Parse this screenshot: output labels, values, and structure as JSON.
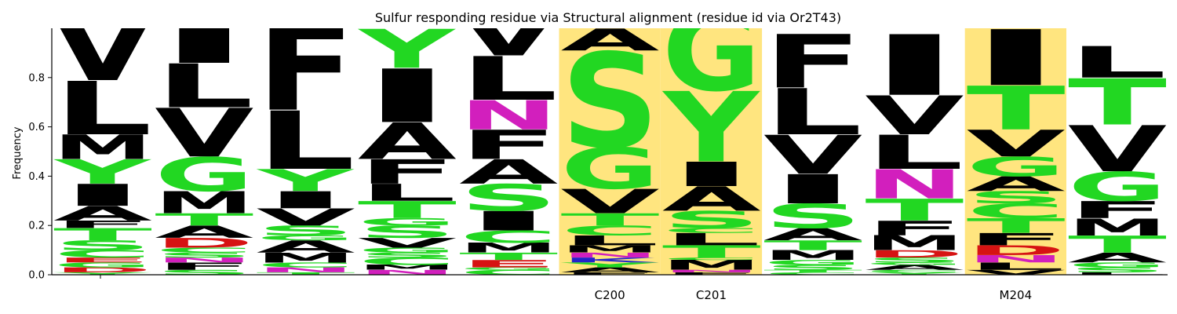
{
  "chart_data": {
    "type": "sequence-logo",
    "title": "Sulfur responding residue via Structural alignment (residue id via Or2T43)",
    "ylabel": "Frequency",
    "xlabel": "",
    "ylim": [
      0,
      1.0
    ],
    "y_ticks": [
      "0.0",
      "0.2",
      "0.4",
      "0.6",
      "0.8"
    ],
    "y_tick_values": [
      0,
      0.2,
      0.4,
      0.6,
      0.8
    ],
    "grid": false,
    "colors": {
      "hydrophobic": "#000000",
      "polar": "#22d722",
      "amide": "#d21fbd",
      "acidic": "#d61313",
      "basic": "#2222cc",
      "highlight": "#ffe57f"
    },
    "positions": [
      {
        "label": "",
        "highlight": false,
        "stack": [
          {
            "letter": "Y",
            "freq": 0.01
          },
          {
            "letter": "D",
            "freq": 0.02
          },
          {
            "letter": "G",
            "freq": 0.02
          },
          {
            "letter": "E",
            "freq": 0.02
          },
          {
            "letter": "C",
            "freq": 0.03
          },
          {
            "letter": "S",
            "freq": 0.04
          },
          {
            "letter": "T",
            "freq": 0.05
          },
          {
            "letter": "F",
            "freq": 0.03
          },
          {
            "letter": "A",
            "freq": 0.06
          },
          {
            "letter": "I",
            "freq": 0.09
          },
          {
            "letter": "Y",
            "freq": 0.1
          },
          {
            "letter": "M",
            "freq": 0.1
          },
          {
            "letter": "L",
            "freq": 0.22
          },
          {
            "letter": "V",
            "freq": 0.26
          }
        ]
      },
      {
        "label": "",
        "highlight": false,
        "stack": [
          {
            "letter": "S",
            "freq": 0.02
          },
          {
            "letter": "F",
            "freq": 0.03
          },
          {
            "letter": "N",
            "freq": 0.02
          },
          {
            "letter": "S",
            "freq": 0.02
          },
          {
            "letter": "C",
            "freq": 0.02
          },
          {
            "letter": "D",
            "freq": 0.04
          },
          {
            "letter": "A",
            "freq": 0.05
          },
          {
            "letter": "T",
            "freq": 0.05
          },
          {
            "letter": "M",
            "freq": 0.09
          },
          {
            "letter": "G",
            "freq": 0.14
          },
          {
            "letter": "V",
            "freq": 0.2
          },
          {
            "letter": "L",
            "freq": 0.18
          },
          {
            "letter": "I",
            "freq": 0.19
          }
        ]
      },
      {
        "label": "",
        "highlight": false,
        "stack": [
          {
            "letter": "T",
            "freq": 0.01
          },
          {
            "letter": "N",
            "freq": 0.02
          },
          {
            "letter": "C",
            "freq": 0.02
          },
          {
            "letter": "M",
            "freq": 0.04
          },
          {
            "letter": "A",
            "freq": 0.05
          },
          {
            "letter": "G",
            "freq": 0.02
          },
          {
            "letter": "S",
            "freq": 0.04
          },
          {
            "letter": "V",
            "freq": 0.07
          },
          {
            "letter": "I",
            "freq": 0.07
          },
          {
            "letter": "Y",
            "freq": 0.09
          },
          {
            "letter": "L",
            "freq": 0.24
          },
          {
            "letter": "F",
            "freq": 0.36
          }
        ]
      },
      {
        "label": "",
        "highlight": false,
        "stack": [
          {
            "letter": "N",
            "freq": 0.02
          },
          {
            "letter": "M",
            "freq": 0.02
          },
          {
            "letter": "C",
            "freq": 0.03
          },
          {
            "letter": "S",
            "freq": 0.02
          },
          {
            "letter": "G",
            "freq": 0.02
          },
          {
            "letter": "V",
            "freq": 0.04
          },
          {
            "letter": "S",
            "freq": 0.05
          },
          {
            "letter": "G",
            "freq": 0.03
          },
          {
            "letter": "T",
            "freq": 0.07
          },
          {
            "letter": "L",
            "freq": 0.07
          },
          {
            "letter": "F",
            "freq": 0.1
          },
          {
            "letter": "A",
            "freq": 0.15
          },
          {
            "letter": "I",
            "freq": 0.22
          },
          {
            "letter": "Y",
            "freq": 0.16
          }
        ]
      },
      {
        "label": "",
        "highlight": false,
        "stack": [
          {
            "letter": "C",
            "freq": 0.02
          },
          {
            "letter": "G",
            "freq": 0.01
          },
          {
            "letter": "E",
            "freq": 0.03
          },
          {
            "letter": "T",
            "freq": 0.03
          },
          {
            "letter": "M",
            "freq": 0.04
          },
          {
            "letter": "C",
            "freq": 0.05
          },
          {
            "letter": "I",
            "freq": 0.08
          },
          {
            "letter": "S",
            "freq": 0.11
          },
          {
            "letter": "A",
            "freq": 0.1
          },
          {
            "letter": "F",
            "freq": 0.12
          },
          {
            "letter": "N",
            "freq": 0.12
          },
          {
            "letter": "L",
            "freq": 0.18
          },
          {
            "letter": "V",
            "freq": 0.18
          }
        ]
      },
      {
        "label": "C200",
        "highlight": true,
        "stack": [
          {
            "letter": "F",
            "freq": 0.01
          },
          {
            "letter": "A",
            "freq": 0.02
          },
          {
            "letter": "Y",
            "freq": 0.02
          },
          {
            "letter": "K",
            "freq": 0.02
          },
          {
            "letter": "N",
            "freq": 0.02
          },
          {
            "letter": "M",
            "freq": 0.03
          },
          {
            "letter": "L",
            "freq": 0.04
          },
          {
            "letter": "C",
            "freq": 0.04
          },
          {
            "letter": "T",
            "freq": 0.05
          },
          {
            "letter": "V",
            "freq": 0.1
          },
          {
            "letter": "G",
            "freq": 0.17
          },
          {
            "letter": "S",
            "freq": 0.39
          },
          {
            "letter": "A",
            "freq": 0.09
          }
        ]
      },
      {
        "label": "C201",
        "highlight": true,
        "stack": [
          {
            "letter": "F",
            "freq": 0.01
          },
          {
            "letter": "N",
            "freq": 0.01
          },
          {
            "letter": "M",
            "freq": 0.04
          },
          {
            "letter": "C",
            "freq": 0.01
          },
          {
            "letter": "T",
            "freq": 0.05
          },
          {
            "letter": "L",
            "freq": 0.05
          },
          {
            "letter": "C",
            "freq": 0.02
          },
          {
            "letter": "S",
            "freq": 0.07
          },
          {
            "letter": "A",
            "freq": 0.1
          },
          {
            "letter": "I",
            "freq": 0.1
          },
          {
            "letter": "Y",
            "freq": 0.29
          },
          {
            "letter": "G",
            "freq": 0.33
          }
        ]
      },
      {
        "label": "",
        "highlight": false,
        "stack": [
          {
            "letter": "C",
            "freq": 0.01
          },
          {
            "letter": "T",
            "freq": 0.01
          },
          {
            "letter": "S",
            "freq": 0.02
          },
          {
            "letter": "G",
            "freq": 0.02
          },
          {
            "letter": "M",
            "freq": 0.04
          },
          {
            "letter": "T",
            "freq": 0.04
          },
          {
            "letter": "A",
            "freq": 0.05
          },
          {
            "letter": "S",
            "freq": 0.1
          },
          {
            "letter": "I",
            "freq": 0.12
          },
          {
            "letter": "V",
            "freq": 0.16
          },
          {
            "letter": "L",
            "freq": 0.19
          },
          {
            "letter": "F",
            "freq": 0.22
          }
        ]
      },
      {
        "label": "",
        "highlight": false,
        "stack": [
          {
            "letter": "Y",
            "freq": 0.01
          },
          {
            "letter": "C",
            "freq": 0.01
          },
          {
            "letter": "A",
            "freq": 0.02
          },
          {
            "letter": "G",
            "freq": 0.01
          },
          {
            "letter": "S",
            "freq": 0.02
          },
          {
            "letter": "D",
            "freq": 0.03
          },
          {
            "letter": "M",
            "freq": 0.06
          },
          {
            "letter": "F",
            "freq": 0.06
          },
          {
            "letter": "T",
            "freq": 0.09
          },
          {
            "letter": "N",
            "freq": 0.12
          },
          {
            "letter": "L",
            "freq": 0.14
          },
          {
            "letter": "V",
            "freq": 0.16
          },
          {
            "letter": "I",
            "freq": 0.25
          }
        ]
      },
      {
        "label": "M204",
        "highlight": true,
        "stack": [
          {
            "letter": "V",
            "freq": 0.02
          },
          {
            "letter": "L",
            "freq": 0.03
          },
          {
            "letter": "N",
            "freq": 0.03
          },
          {
            "letter": "D",
            "freq": 0.04
          },
          {
            "letter": "F",
            "freq": 0.05
          },
          {
            "letter": "T",
            "freq": 0.06
          },
          {
            "letter": "C",
            "freq": 0.06
          },
          {
            "letter": "S",
            "freq": 0.05
          },
          {
            "letter": "A",
            "freq": 0.06
          },
          {
            "letter": "G",
            "freq": 0.08
          },
          {
            "letter": "V",
            "freq": 0.11
          },
          {
            "letter": "T",
            "freq": 0.18
          },
          {
            "letter": "I",
            "freq": 0.23
          }
        ]
      },
      {
        "label": "",
        "highlight": false,
        "stack": [
          {
            "letter": "L",
            "freq": 0.01
          },
          {
            "letter": "S",
            "freq": 0.02
          },
          {
            "letter": "G",
            "freq": 0.02
          },
          {
            "letter": "A",
            "freq": 0.04
          },
          {
            "letter": "T",
            "freq": 0.07
          },
          {
            "letter": "M",
            "freq": 0.07
          },
          {
            "letter": "F",
            "freq": 0.07
          },
          {
            "letter": "G",
            "freq": 0.12
          },
          {
            "letter": "V",
            "freq": 0.19
          },
          {
            "letter": "T",
            "freq": 0.19
          },
          {
            "letter": "L",
            "freq": 0.13
          }
        ]
      }
    ]
  }
}
